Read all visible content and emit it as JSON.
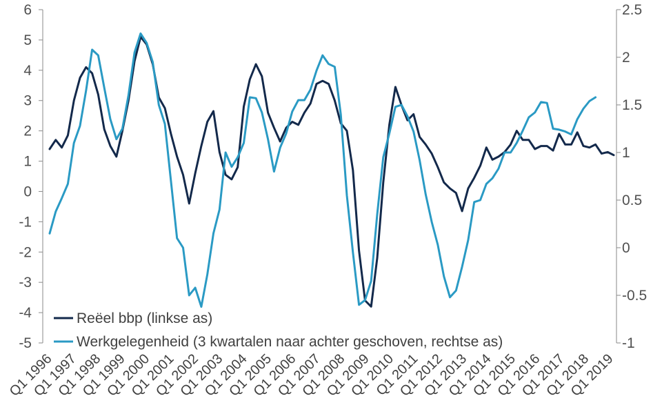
{
  "chart_data": {
    "type": "line",
    "title": "",
    "xlabel": "",
    "ylabel_left": "",
    "ylabel_right": "",
    "x_tick_labels": [
      "Q1 1996",
      "Q1 1997",
      "Q1 1998",
      "Q1 1999",
      "Q1 2000",
      "Q1 2001",
      "Q1 2002",
      "Q1 2003",
      "Q1 2004",
      "Q1 2005",
      "Q1 2006",
      "Q1 2007",
      "Q1 2008",
      "Q1 2009",
      "Q1 2010",
      "Q1 2011",
      "Q1 2012",
      "Q1 2013",
      "Q1 2014",
      "Q1 2015",
      "Q1 2016",
      "Q1 2017",
      "Q1 2018",
      "Q1 2019"
    ],
    "y_left": {
      "range": [
        -5,
        6
      ],
      "ticks": [
        "-5",
        "-4",
        "-3",
        "-2",
        "-1",
        "0",
        "1",
        "2",
        "3",
        "4",
        "5",
        "6"
      ]
    },
    "y_right": {
      "range": [
        -1,
        2.5
      ],
      "ticks": [
        "-1",
        "-0.5",
        "0",
        "0.5",
        "1",
        "1.5",
        "2",
        "2.5"
      ]
    },
    "grid": false,
    "legend_position": "bottom-left",
    "series": [
      {
        "name": "Reëel bbp (linkse as)",
        "axis": "left",
        "color": "#13294b",
        "values": [
          1.4,
          1.7,
          1.45,
          1.85,
          3.0,
          3.75,
          4.1,
          3.9,
          3.2,
          2.05,
          1.5,
          1.15,
          2.0,
          3.0,
          4.3,
          5.1,
          4.85,
          4.2,
          3.1,
          2.75,
          1.9,
          1.15,
          0.55,
          -0.4,
          0.6,
          1.5,
          2.3,
          2.65,
          1.3,
          0.55,
          0.4,
          0.8,
          2.8,
          3.7,
          4.2,
          3.8,
          2.6,
          2.1,
          1.65,
          2.1,
          2.3,
          2.2,
          2.6,
          2.9,
          3.55,
          3.65,
          3.55,
          3.0,
          2.25,
          2.0,
          0.7,
          -1.95,
          -3.6,
          -3.8,
          -2.2,
          0.3,
          2.2,
          3.45,
          2.85,
          2.35,
          2.55,
          1.8,
          1.55,
          1.25,
          0.8,
          0.3,
          0.1,
          -0.05,
          -0.65,
          0.1,
          0.45,
          0.85,
          1.45,
          1.05,
          1.15,
          1.3,
          1.55,
          2.0,
          1.7,
          1.7,
          1.4,
          1.5,
          1.5,
          1.35,
          1.9,
          1.55,
          1.55,
          1.95,
          1.5,
          1.45,
          1.55,
          1.25,
          1.3,
          1.2
        ]
      },
      {
        "name": "Werkgelegenheid (3 kwartalen naar achter geschoven, rechtse as)",
        "axis": "right",
        "color": "#2a9ac4",
        "values": [
          0.15,
          0.38,
          0.52,
          0.67,
          1.1,
          1.28,
          1.65,
          2.08,
          2.02,
          1.68,
          1.35,
          1.14,
          1.25,
          1.6,
          2.05,
          2.25,
          2.15,
          1.95,
          1.5,
          1.3,
          0.7,
          0.1,
          0.0,
          -0.5,
          -0.42,
          -0.62,
          -0.28,
          0.15,
          0.4,
          1.0,
          0.85,
          0.95,
          1.1,
          1.58,
          1.57,
          1.42,
          1.14,
          0.8,
          1.05,
          1.2,
          1.43,
          1.55,
          1.55,
          1.66,
          1.86,
          2.02,
          1.93,
          1.9,
          1.4,
          0.55,
          -0.05,
          -0.6,
          -0.55,
          -0.35,
          0.35,
          0.95,
          1.2,
          1.48,
          1.5,
          1.38,
          1.22,
          0.92,
          0.56,
          0.27,
          0.03,
          -0.3,
          -0.52,
          -0.45,
          -0.2,
          0.08,
          0.48,
          0.5,
          0.67,
          0.73,
          0.83,
          1.0,
          1.0,
          1.1,
          1.23,
          1.37,
          1.42,
          1.53,
          1.52,
          1.25,
          1.24,
          1.22,
          1.19,
          1.35,
          1.46,
          1.54,
          1.58
        ]
      }
    ]
  }
}
